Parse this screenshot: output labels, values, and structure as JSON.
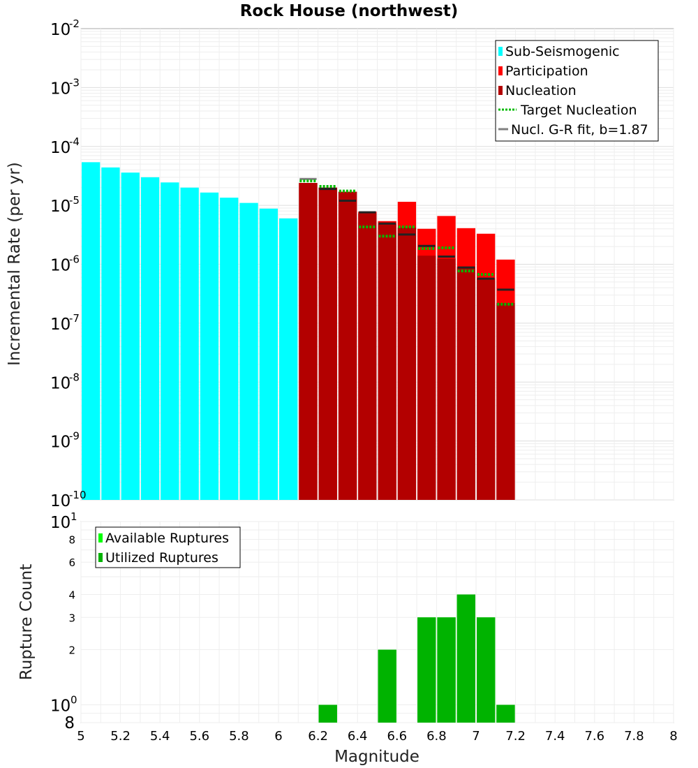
{
  "chart_data": [
    {
      "type": "bar",
      "title": "Rock House (northwest)",
      "xlabel": "",
      "ylabel": "Incremental Rate (per yr)",
      "yscale": "log",
      "ylim": [
        1e-10,
        0.01
      ],
      "xlim": [
        5,
        8
      ],
      "bin_width": 0.1,
      "y_ticks": [
        {
          "base": "10",
          "exp": "-10"
        },
        {
          "base": "10",
          "exp": "-9"
        },
        {
          "base": "10",
          "exp": "-8"
        },
        {
          "base": "10",
          "exp": "-7"
        },
        {
          "base": "10",
          "exp": "-6"
        },
        {
          "base": "10",
          "exp": "-5"
        },
        {
          "base": "10",
          "exp": "-4"
        },
        {
          "base": "10",
          "exp": "-3"
        },
        {
          "base": "10",
          "exp": "-2"
        }
      ],
      "legend_position": "top-right",
      "legend": [
        {
          "label": "Sub-Seismogenic",
          "kind": "bar",
          "color": "#00ffff"
        },
        {
          "label": "Participation",
          "kind": "bar",
          "color": "#ff0000"
        },
        {
          "label": "Nucleation",
          "kind": "bar",
          "color": "#b30000"
        },
        {
          "label": "Target Nucleation",
          "kind": "dotted-line",
          "color": "#00bb00"
        },
        {
          "label": "Nucl. G-R fit, b=1.87",
          "kind": "line",
          "color": "#808080"
        }
      ],
      "series": [
        {
          "name": "Sub-Seismogenic",
          "color": "#00ffff",
          "x": [
            5.05,
            5.15,
            5.25,
            5.35,
            5.45,
            5.55,
            5.65,
            5.75,
            5.85,
            5.95,
            6.05
          ],
          "values": [
            5.4e-05,
            4.4e-05,
            3.6e-05,
            3e-05,
            2.45e-05,
            2e-05,
            1.65e-05,
            1.35e-05,
            1.1e-05,
            8.8e-06,
            6e-06
          ]
        },
        {
          "name": "Participation",
          "color": "#ff0000",
          "x": [
            6.15,
            6.25,
            6.35,
            6.45,
            6.55,
            6.65,
            6.75,
            6.85,
            6.95,
            7.05,
            7.15
          ],
          "values": [
            2.4e-05,
            2e-05,
            1.7e-05,
            7.8e-06,
            5.4e-06,
            1.15e-05,
            4e-06,
            6.6e-06,
            4.1e-06,
            3.3e-06,
            1.2e-06
          ]
        },
        {
          "name": "Nucleation",
          "color": "#b30000",
          "x": [
            6.15,
            6.25,
            6.35,
            6.45,
            6.55,
            6.65,
            6.75,
            6.85,
            6.95,
            7.05,
            7.15
          ],
          "values": [
            2.4e-05,
            2e-05,
            1.7e-05,
            7.3e-06,
            4.9e-06,
            4.2e-06,
            1.4e-06,
            1.25e-06,
            9e-07,
            5.8e-07,
            2.2e-07
          ]
        },
        {
          "name": "Target Nucleation",
          "color": "#00bb00",
          "x": [
            6.15,
            6.25,
            6.35,
            6.45,
            6.55,
            6.65,
            6.75,
            6.85,
            6.95,
            7.05,
            7.15
          ],
          "values": [
            2.6e-05,
            2.1e-05,
            1.75e-05,
            4.3e-06,
            3e-06,
            4.3e-06,
            1.85e-06,
            1.9e-06,
            7.7e-07,
            6.7e-07,
            2.1e-07
          ]
        },
        {
          "name": "Nucl. G-R fit, b=1.87",
          "color": "#808080",
          "x": [
            6.15,
            6.25,
            6.35,
            6.45,
            6.55,
            6.65,
            6.75,
            6.85,
            6.95,
            7.05,
            7.15
          ],
          "values": [
            2.8e-05,
            1.9e-05,
            1.2e-05,
            7.6e-06,
            4.9e-06,
            3.2e-06,
            2.05e-06,
            1.35e-06,
            8.8e-07,
            5.7e-07,
            3.7e-07
          ]
        }
      ]
    },
    {
      "type": "bar",
      "title": "",
      "xlabel": "Magnitude",
      "ylabel": "Rupture Count",
      "yscale": "log",
      "ylim": [
        0.8,
        10
      ],
      "xlim": [
        5,
        8
      ],
      "bin_width": 0.1,
      "x_ticks": [
        "5",
        "5.2",
        "5.4",
        "5.6",
        "5.8",
        "6",
        "6.2",
        "6.4",
        "6.6",
        "6.8",
        "7",
        "7.2",
        "7.4",
        "7.6",
        "7.8",
        "8"
      ],
      "y_major_ticks": [
        {
          "value": 1,
          "base": "10",
          "exp": "0"
        },
        {
          "value": 10,
          "base": "10",
          "exp": "1"
        }
      ],
      "y_minor_ticks": [
        {
          "value": 0.8,
          "label": "8"
        },
        {
          "value": 2,
          "label": "2"
        },
        {
          "value": 3,
          "label": "3"
        },
        {
          "value": 4,
          "label": "4"
        },
        {
          "value": 6,
          "label": "6"
        },
        {
          "value": 8,
          "label": "8"
        }
      ],
      "legend_position": "top-left",
      "legend": [
        {
          "label": "Available Ruptures",
          "kind": "bar",
          "color": "#00ff00"
        },
        {
          "label": "Utilized Ruptures",
          "kind": "bar",
          "color": "#00b300"
        }
      ],
      "series": [
        {
          "name": "Available Ruptures",
          "color": "#00ff00",
          "x": [
            6.25,
            6.55,
            6.75,
            6.85,
            6.95,
            7.05,
            7.15
          ],
          "values": [
            1,
            2,
            3,
            3,
            4,
            3,
            1
          ]
        },
        {
          "name": "Utilized Ruptures",
          "color": "#00b300",
          "x": [
            6.25,
            6.55,
            6.75,
            6.85,
            6.95,
            7.05,
            7.15
          ],
          "values": [
            1,
            2,
            3,
            3,
            4,
            3,
            1
          ]
        }
      ]
    }
  ]
}
